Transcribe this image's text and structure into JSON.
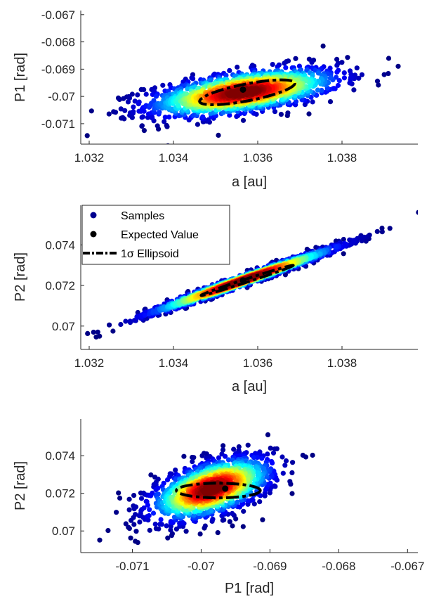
{
  "chart_data": [
    {
      "type": "scatter",
      "title": "",
      "xlabel": "a [au]",
      "ylabel": "P1 [rad]",
      "xlim": [
        1.0318,
        1.0398
      ],
      "ylim": [
        -0.07175,
        -0.06685
      ],
      "xticks": [
        "1.032",
        "1.034",
        "1.036",
        "1.038"
      ],
      "xtick_values": [
        1.032,
        1.034,
        1.036,
        1.038
      ],
      "yticks": [
        "-0.067",
        "-0.068",
        "-0.069",
        "-0.07",
        "-0.071"
      ],
      "ytick_values": [
        -0.067,
        -0.068,
        -0.069,
        -0.07,
        -0.071
      ],
      "expected_value": {
        "x": 1.03565,
        "y": -0.06975
      },
      "ellipse": {
        "cx": 1.03575,
        "cy": -0.06985,
        "rx": 0.00115,
        "ry": 0.00031,
        "angle_deg": -11
      },
      "sample_cloud": {
        "mean": [
          1.03565,
          -0.06985
        ],
        "sd": [
          0.00115,
          0.00045
        ],
        "corr": 0.55
      },
      "colormap": "jet",
      "legend": null
    },
    {
      "type": "scatter",
      "title": "",
      "xlabel": "a [au]",
      "ylabel": "P2 [rad]",
      "xlim": [
        1.0318,
        1.0398
      ],
      "ylim": [
        0.06885,
        0.07595
      ],
      "xticks": [
        "1.032",
        "1.034",
        "1.036",
        "1.038"
      ],
      "xtick_values": [
        1.032,
        1.034,
        1.036,
        1.038
      ],
      "yticks": [
        "0.074",
        "0.072",
        "0.07"
      ],
      "ytick_values": [
        0.074,
        0.072,
        0.07
      ],
      "expected_value": {
        "x": 1.03565,
        "y": 0.07225
      },
      "ellipse": {
        "cx": 1.03575,
        "cy": 0.07225,
        "rx": 0.00115,
        "ry": 8e-05,
        "angle_deg": -18
      },
      "sample_cloud": {
        "mean": [
          1.03565,
          0.07225
        ],
        "sd": [
          0.00115,
          0.00085
        ],
        "corr": 0.985
      },
      "colormap": "jet",
      "legend": {
        "location": "top-left",
        "entries": [
          {
            "label": "Samples",
            "marker": "dot",
            "color": "#00008f"
          },
          {
            "label": "Expected Value",
            "marker": "dot",
            "color": "#000000"
          },
          {
            "label": "1σ Ellipsoid",
            "marker": "dashdot-line",
            "color": "#000000"
          }
        ]
      }
    },
    {
      "type": "scatter",
      "title": "",
      "xlabel": "P1 [rad]",
      "ylabel": "P2 [rad]",
      "xlim": [
        -0.07175,
        -0.06685
      ],
      "ylim": [
        0.06885,
        0.07595
      ],
      "xticks": [
        "-0.071",
        "-0.07",
        "-0.069",
        "-0.068",
        "-0.067"
      ],
      "xtick_values": [
        -0.071,
        -0.07,
        -0.069,
        -0.068,
        -0.067
      ],
      "yticks": [
        "0.074",
        "0.072",
        "0.07"
      ],
      "ytick_values": [
        0.074,
        0.072,
        0.07
      ],
      "expected_value": {
        "x": -0.06965,
        "y": 0.07225
      },
      "ellipse": {
        "cx": -0.06975,
        "cy": 0.07215,
        "rx": 0.00061,
        "ry": 0.00039,
        "angle_deg": 0
      },
      "sample_cloud": {
        "mean": [
          -0.06985,
          0.07225
        ],
        "sd": [
          0.00045,
          0.00085
        ],
        "corr": 0.55
      },
      "colormap": "jet",
      "legend": null
    }
  ]
}
